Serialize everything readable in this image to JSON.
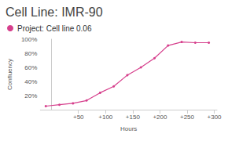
{
  "chart_data": {
    "type": "line",
    "title": "Cell Line: IMR-90",
    "x_label": "Hours",
    "y_label": "Confluency",
    "x": [
      -10,
      15,
      40,
      65,
      90,
      115,
      140,
      165,
      190,
      215,
      240,
      265,
      290
    ],
    "series": [
      {
        "name": "Project: Cell line 0.06",
        "color": "#d63f8c",
        "marker": "circle",
        "values": [
          5,
          7,
          9,
          13,
          24,
          33,
          49,
          60,
          73,
          91,
          96,
          95,
          95
        ]
      }
    ],
    "xlim": [
      -20,
      305
    ],
    "xticks": [
      {
        "value": 50,
        "label": "+50"
      },
      {
        "value": 100,
        "label": "+100"
      },
      {
        "value": 150,
        "label": "+150"
      },
      {
        "value": 200,
        "label": "+200"
      },
      {
        "value": 250,
        "label": "+250"
      },
      {
        "value": 300,
        "label": "+300"
      }
    ],
    "ylim": [
      0,
      100
    ],
    "yticks": [
      {
        "value": 20,
        "label": "20%"
      },
      {
        "value": 40,
        "label": "40%"
      },
      {
        "value": 60,
        "label": "60%"
      },
      {
        "value": 80,
        "label": "80%"
      },
      {
        "value": 100,
        "label": "100%"
      }
    ],
    "grid": false,
    "legend": "top-left"
  }
}
